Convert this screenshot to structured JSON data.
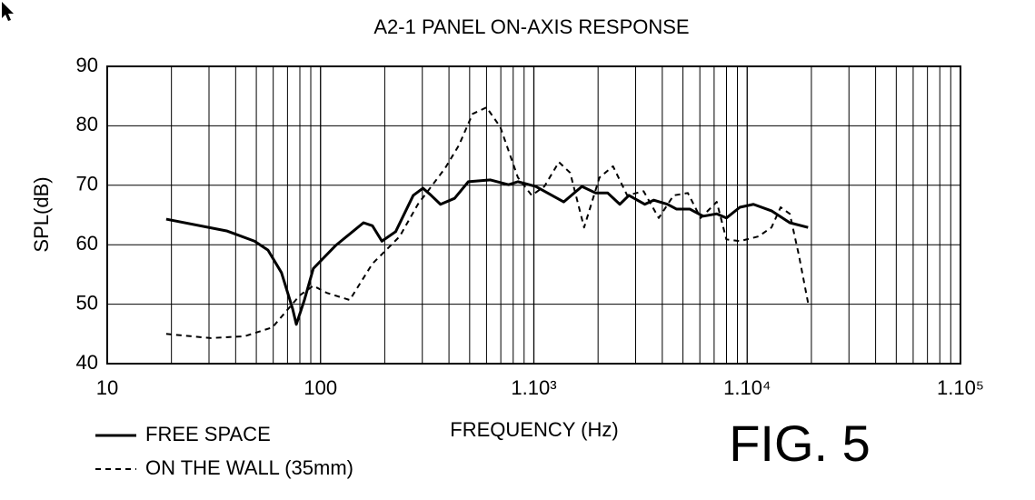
{
  "chart_data": {
    "type": "line",
    "title": "A2-1 PANEL ON-AXIS RESPONSE",
    "x_label": "FREQUENCY (Hz)",
    "y_label": "SPL(dB)",
    "annotation": "FIG. 5",
    "xscale": "log",
    "grid": true,
    "minor_grid": true,
    "xlim": [
      10,
      100000
    ],
    "xticks": [
      10,
      100,
      {
        "value": 1000,
        "label": "1.10³"
      },
      {
        "value": 10000,
        "label": "1.10⁴"
      },
      {
        "value": 100000,
        "label": "1.10⁵"
      }
    ],
    "ylim": [
      40,
      90
    ],
    "yticks": [
      40,
      50,
      60,
      70,
      80,
      90
    ],
    "legend": "bottom-left",
    "series": [
      {
        "name": "FREE SPACE",
        "color": "#000000",
        "line_style": "solid",
        "x": [
          18.9,
          36.5,
          49,
          56.7,
          65.6,
          74,
          77,
          84,
          92.5,
          118,
          159,
          175,
          194,
          225,
          272,
          302,
          330,
          365,
          425,
          493,
          626,
          761,
          842,
          1020,
          1120,
          1380,
          1680,
          1950,
          2220,
          2530,
          2790,
          3310,
          3650,
          4230,
          4660,
          5380,
          6220,
          7200,
          7990,
          9240,
          10700,
          13000,
          15840,
          19300
        ],
        "values": [
          64.3,
          62.3,
          60.6,
          59.1,
          55.3,
          49.2,
          46.6,
          50.7,
          56,
          59.9,
          63.7,
          63.2,
          60.6,
          62.2,
          68.3,
          69.5,
          68.3,
          66.8,
          67.8,
          70.6,
          70.9,
          70.1,
          70.6,
          69.8,
          69,
          67.2,
          69.8,
          68.7,
          68.7,
          66.8,
          68.3,
          66.8,
          67.5,
          66.8,
          66,
          66,
          64.8,
          65.2,
          64.5,
          66.3,
          66.8,
          65.7,
          63.7,
          62.9
        ]
      },
      {
        "name": "ON THE WALL (35mm)",
        "color": "#000000",
        "line_style": "dashed",
        "x": [
          18.9,
          30.5,
          44,
          59.5,
          80,
          92.5,
          107,
          137,
          175,
          235,
          286,
          384,
          445,
          516,
          600,
          696,
          842,
          977,
          1120,
          1310,
          1480,
          1720,
          2030,
          2350,
          2740,
          3270,
          3850,
          4520,
          5270,
          6050,
          7200,
          7990,
          9240,
          11300,
          13000,
          14350,
          15840,
          17460,
          19300
        ],
        "values": [
          45,
          44.3,
          44.6,
          46.1,
          51.5,
          53.1,
          51.9,
          50.7,
          56.8,
          61.4,
          66.8,
          72.9,
          76.7,
          82,
          83.1,
          79.8,
          71.3,
          68.3,
          69.8,
          73.9,
          72.1,
          62.9,
          71.3,
          73.2,
          68.3,
          69,
          64.5,
          68.3,
          68.7,
          64.5,
          67.2,
          60.9,
          60.6,
          61.4,
          62.9,
          66.3,
          65.2,
          58.3,
          50.2
        ]
      }
    ]
  }
}
